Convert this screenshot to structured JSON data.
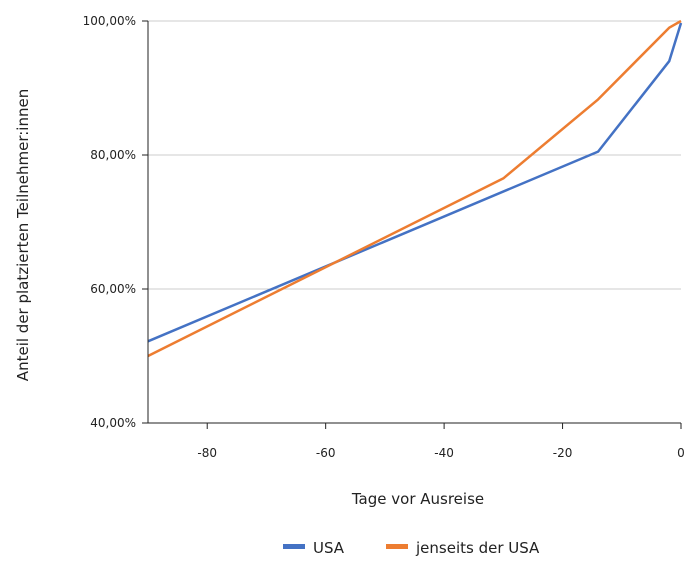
{
  "chart_data": {
    "type": "line",
    "xlabel": "Tage vor Ausreise",
    "ylabel": "Anteil der platzierten Teilnehmer:innen",
    "xlim": [
      -90,
      0
    ],
    "ylim": [
      0.4,
      1.0
    ],
    "x_ticks": [
      {
        "value": -80,
        "label": "-80"
      },
      {
        "value": -60,
        "label": "-60"
      },
      {
        "value": -40,
        "label": "-40"
      },
      {
        "value": -20,
        "label": "-20"
      },
      {
        "value": 0,
        "label": "0"
      }
    ],
    "y_ticks": [
      {
        "value": 0.4,
        "label": "40,00%"
      },
      {
        "value": 0.6,
        "label": "60,00%"
      },
      {
        "value": 0.8,
        "label": "80,00%"
      },
      {
        "value": 1.0,
        "label": "100,00%"
      }
    ],
    "grid": "horizontal",
    "legend_position": "bottom",
    "series": [
      {
        "name": "USA",
        "color": "#4472c4",
        "points": [
          {
            "x": -90,
            "y": 0.522
          },
          {
            "x": -14,
            "y": 0.805
          },
          {
            "x": -2,
            "y": 0.94
          },
          {
            "x": 0,
            "y": 0.997
          }
        ]
      },
      {
        "name": "jenseits der USA",
        "color": "#ed7d31",
        "points": [
          {
            "x": -90,
            "y": 0.5
          },
          {
            "x": -30,
            "y": 0.765
          },
          {
            "x": -14,
            "y": 0.883
          },
          {
            "x": -2,
            "y": 0.99
          },
          {
            "x": 0,
            "y": 1.0
          }
        ]
      }
    ]
  }
}
